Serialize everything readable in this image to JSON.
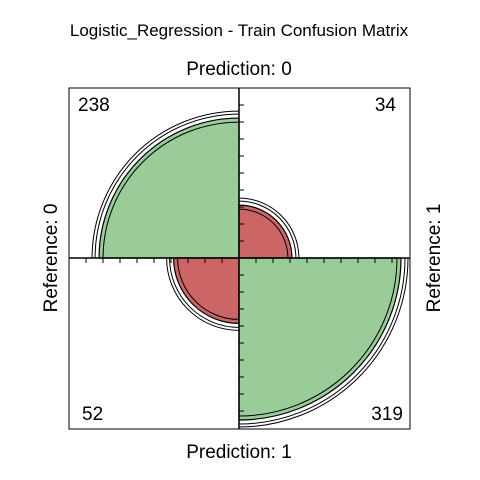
{
  "chart_data": {
    "type": "fourfold",
    "title": "Logistic_Regression - Train Confusion Matrix",
    "top_label": "Prediction: 0",
    "bottom_label": "Prediction: 1",
    "left_label": "Reference: 0",
    "right_label": "Reference: 1",
    "cells": [
      {
        "position": "top-left",
        "value": 238,
        "label": "238",
        "color": "#99cc99"
      },
      {
        "position": "top-right",
        "value": 34,
        "label": "34",
        "color": "#cc6666"
      },
      {
        "position": "bottom-left",
        "value": 52,
        "label": "52",
        "color": "#cc6666"
      },
      {
        "position": "bottom-right",
        "value": 319,
        "label": "319",
        "color": "#99cc99"
      }
    ],
    "colors": {
      "correct": "#99cc99",
      "incorrect": "#cc6666"
    }
  }
}
